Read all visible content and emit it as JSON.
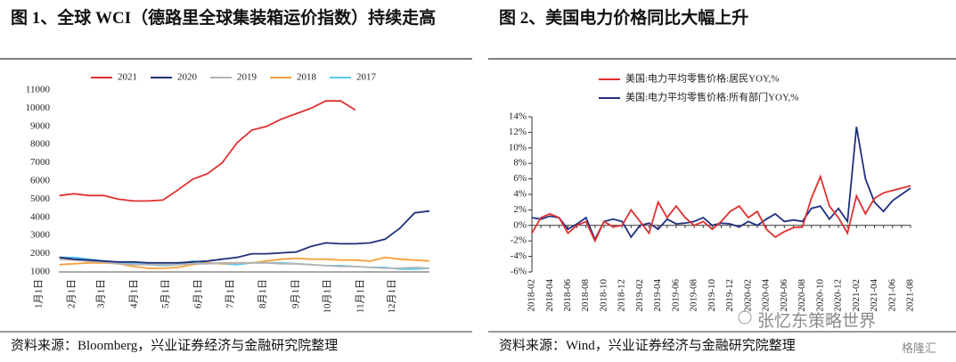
{
  "chart_data": [
    {
      "type": "line",
      "title": "图 1、全球 WCI（德路里全球集装箱运价指数）持续走高",
      "source": "资料来源：Bloomberg，兴业证券经济与金融研究院整理",
      "x": [
        2,
        4,
        6,
        8,
        10,
        12,
        14,
        16,
        18,
        20,
        22,
        24,
        26,
        28,
        30,
        32,
        34,
        36,
        38,
        40,
        42,
        44,
        46,
        48,
        50,
        52
      ],
      "xlim": [
        0,
        52
      ],
      "xticks": [
        {
          "value": 0,
          "label": "1月1日"
        },
        {
          "value": 4.43,
          "label": "2月1日"
        },
        {
          "value": 8.43,
          "label": "3月1日"
        },
        {
          "value": 12.86,
          "label": "4月1日"
        },
        {
          "value": 17.14,
          "label": "5月1日"
        },
        {
          "value": 21.57,
          "label": "6月1日"
        },
        {
          "value": 25.86,
          "label": "7月1日"
        },
        {
          "value": 30.29,
          "label": "8月1日"
        },
        {
          "value": 34.71,
          "label": "9月1日"
        },
        {
          "value": 39,
          "label": "10月1日"
        },
        {
          "value": 43.43,
          "label": "11月1日"
        },
        {
          "value": 47.71,
          "label": "12月1日"
        }
      ],
      "ylim": [
        1000,
        11000
      ],
      "yticks": [
        1000,
        2000,
        3000,
        4000,
        5000,
        6000,
        7000,
        8000,
        9000,
        10000,
        11000
      ],
      "legend": "top",
      "series": [
        {
          "name": "2021",
          "color": "#e03030",
          "values": [
            5200,
            5300,
            5200,
            5200,
            5000,
            4900,
            4900,
            4950,
            5500,
            6100,
            6400,
            7000,
            8100,
            8800,
            9000,
            9400,
            9700,
            10000,
            10400,
            10400,
            9900,
            null,
            null,
            null,
            null,
            null
          ]
        },
        {
          "name": "2020",
          "color": "#1f2f7a",
          "values": [
            1800,
            1700,
            1650,
            1600,
            1550,
            1550,
            1500,
            1500,
            1500,
            1550,
            1600,
            1700,
            1800,
            2000,
            2000,
            2050,
            2100,
            2400,
            2600,
            2550,
            2550,
            2600,
            2800,
            3400,
            4250,
            4350
          ]
        },
        {
          "name": "2019",
          "color": "#b4b4b4",
          "values": [
            1700,
            1650,
            1600,
            1550,
            1450,
            1400,
            1400,
            1400,
            1400,
            1450,
            1450,
            1500,
            1500,
            1500,
            1500,
            1450,
            1450,
            1400,
            1350,
            1300,
            1300,
            1250,
            1200,
            1200,
            1250,
            1200
          ]
        },
        {
          "name": "2018",
          "color": "#f5a040",
          "values": [
            1400,
            1450,
            1500,
            1500,
            1450,
            1300,
            1200,
            1200,
            1250,
            1400,
            1500,
            1450,
            1500,
            1500,
            1600,
            1700,
            1750,
            1700,
            1700,
            1650,
            1650,
            1600,
            1800,
            1700,
            1650,
            1600
          ]
        },
        {
          "name": "2017",
          "color": "#5bc8f0",
          "values": [
            1800,
            1800,
            1700,
            1600,
            1500,
            1450,
            1400,
            1350,
            1400,
            1600,
            1500,
            1450,
            1400,
            1500,
            1500,
            1500,
            1450,
            1400,
            1350,
            1350,
            1300,
            1250,
            1250,
            1150,
            1150,
            1200
          ]
        }
      ]
    },
    {
      "type": "line",
      "title": "图 2、美国电力价格同比大幅上升",
      "source": "资料来源：Wind，兴业证券经济与金融研究院整理",
      "categories": [
        "2018-02",
        null,
        "2018-04",
        null,
        "2018-06",
        null,
        "2018-08",
        null,
        "2018-10",
        null,
        "2018-12",
        null,
        "2019-02",
        null,
        "2019-04",
        null,
        "2019-06",
        null,
        "2019-08",
        null,
        "2019-10",
        null,
        "2019-12",
        null,
        "2020-02",
        null,
        "2020-04",
        null,
        "2020-06",
        null,
        "2020-08",
        null,
        "2020-10",
        null,
        "2020-12",
        null,
        "2021-02",
        null,
        "2021-04",
        null,
        "2021-06",
        null,
        "2021-08"
      ],
      "ylim": [
        -6,
        14
      ],
      "yticks": [
        {
          "value": -6,
          "label": "-6%"
        },
        {
          "value": -4,
          "label": "-4%"
        },
        {
          "value": -2,
          "label": "-2%"
        },
        {
          "value": 0,
          "label": "0%"
        },
        {
          "value": 2,
          "label": "2%"
        },
        {
          "value": 4,
          "label": "4%"
        },
        {
          "value": 6,
          "label": "6%"
        },
        {
          "value": 8,
          "label": "8%"
        },
        {
          "value": 10,
          "label": "10%"
        },
        {
          "value": 12,
          "label": "12%"
        },
        {
          "value": 14,
          "label": "14%"
        }
      ],
      "legend": "upper left",
      "series": [
        {
          "name": "美国:电力平均零售价格:居民YOY,%",
          "color": "#e03030",
          "values": [
            -1,
            1,
            1.5,
            1,
            -1,
            0,
            0.5,
            -2,
            0.5,
            -0.2,
            0,
            2,
            0.5,
            -1,
            3,
            1,
            2.5,
            1,
            0,
            0.5,
            -0.5,
            0.5,
            1.8,
            2.5,
            1,
            1.8,
            -0.5,
            -1.5,
            -0.8,
            -0.3,
            -0.2,
            3.5,
            6.3,
            2.5,
            1,
            -1,
            3.8,
            1.5,
            3.5,
            4.2,
            4.5,
            4.8,
            5.1
          ]
        },
        {
          "name": "美国:电力平均零售价格:所有部门YOY,%",
          "color": "#1f2f80",
          "values": [
            1,
            0.8,
            1.2,
            1,
            -0.5,
            0.2,
            1,
            -1.8,
            0.5,
            0.8,
            0.5,
            -1.5,
            0,
            0.3,
            -0.5,
            0.8,
            0.2,
            0.3,
            0.5,
            1,
            0,
            0.3,
            0.2,
            -0.2,
            0.5,
            0,
            0.8,
            1.5,
            0.5,
            0.7,
            0.5,
            2.2,
            2.5,
            0.8,
            2.2,
            0.5,
            12.7,
            6,
            3,
            1.8,
            3.2,
            4,
            4.8
          ]
        }
      ]
    }
  ],
  "watermarks": [
    "张忆东策略世界",
    "格隆汇"
  ]
}
